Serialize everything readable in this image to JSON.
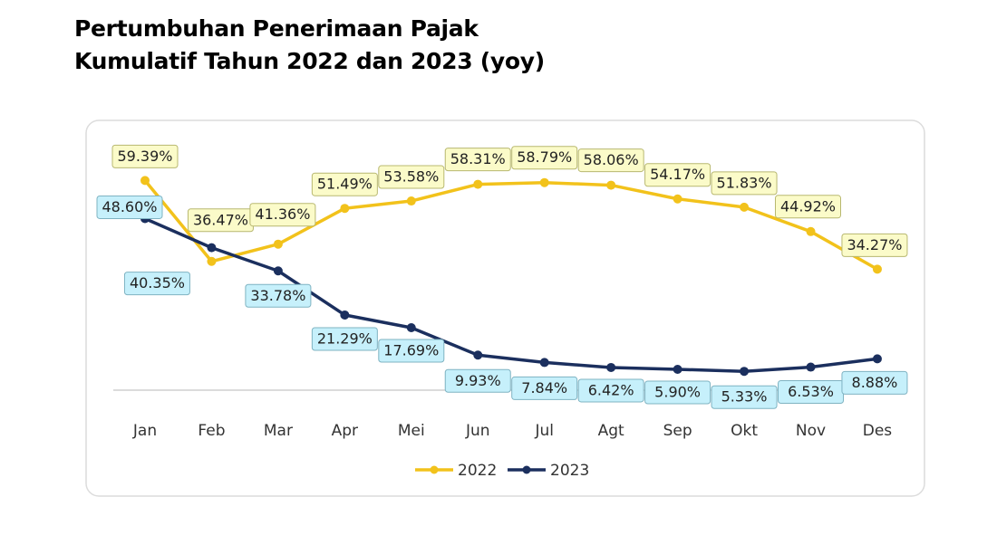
{
  "chart_data": {
    "type": "line",
    "title": "Pertumbuhan Penerimaan Pajak Kumulatif Tahun 2022 dan 2023 (yoy)",
    "categories": [
      "Jan",
      "Feb",
      "Mar",
      "Apr",
      "Mei",
      "Jun",
      "Jul",
      "Agt",
      "Sep",
      "Okt",
      "Nov",
      "Des"
    ],
    "series": [
      {
        "name": "2022",
        "color": "#f2c21b",
        "values": [
          59.39,
          36.47,
          41.36,
          51.49,
          53.58,
          58.31,
          58.79,
          58.06,
          54.17,
          51.83,
          44.92,
          34.27
        ],
        "value_labels": [
          "59.39%",
          "36.47%",
          "41.36%",
          "51.49%",
          "53.58%",
          "58.31%",
          "58.79%",
          "58.06%",
          "54.17%",
          "51.83%",
          "44.92%",
          "34.27%"
        ]
      },
      {
        "name": "2023",
        "color": "#1b2f5e",
        "values": [
          48.6,
          40.35,
          33.78,
          21.29,
          17.69,
          9.93,
          7.84,
          6.42,
          5.9,
          5.33,
          6.53,
          8.88
        ],
        "value_labels": [
          "48.60%",
          "40.35%",
          "33.78%",
          "21.29%",
          "17.69%",
          "9.93%",
          "7.84%",
          "6.42%",
          "5.90%",
          "5.33%",
          "6.53%",
          "8.88%"
        ]
      }
    ],
    "ylim": [
      0,
      70
    ],
    "legend": "bottom"
  }
}
